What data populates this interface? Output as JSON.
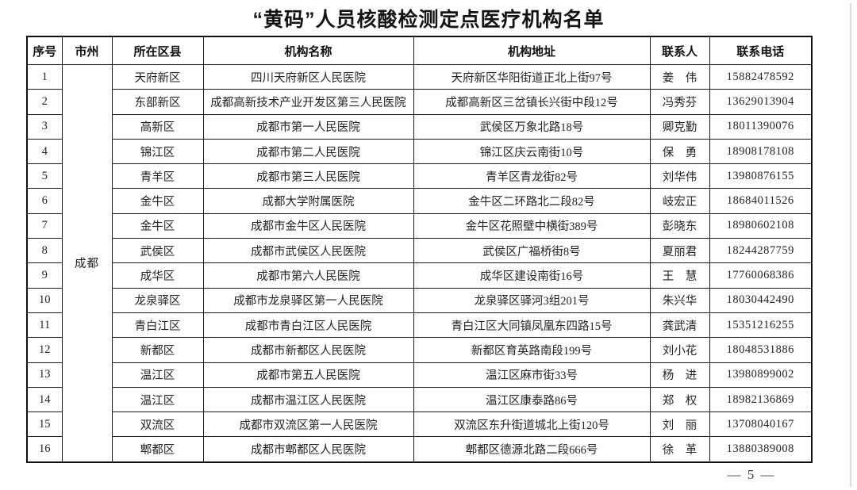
{
  "title": "“黄码”人员核酸检测定点医疗机构名单",
  "page_number": "— 5 —",
  "table": {
    "headers": [
      "序号",
      "市州",
      "所在区县",
      "机构名称",
      "机构地址",
      "联系人",
      "联系电话"
    ],
    "city": "成都",
    "rows": [
      {
        "no": "1",
        "district": "天府新区",
        "name": "四川天府新区人民医院",
        "address": "天府新区华阳街道正北上街97号",
        "contact": "姜　伟",
        "phone": "15882478592"
      },
      {
        "no": "2",
        "district": "东部新区",
        "name": "成都高新技术产业开发区第三人民医院",
        "address": "成都高新区三岔镇长兴街中段12号",
        "contact": "冯秀芬",
        "phone": "13629013904"
      },
      {
        "no": "3",
        "district": "高新区",
        "name": "成都市第一人民医院",
        "address": "武侯区万象北路18号",
        "contact": "卿克勤",
        "phone": "18011390076"
      },
      {
        "no": "4",
        "district": "锦江区",
        "name": "成都市第二人民医院",
        "address": "锦江区庆云南街10号",
        "contact": "保　勇",
        "phone": "18908178108"
      },
      {
        "no": "5",
        "district": "青羊区",
        "name": "成都市第三人民医院",
        "address": "青羊区青龙街82号",
        "contact": "刘华伟",
        "phone": "13980876155"
      },
      {
        "no": "6",
        "district": "金牛区",
        "name": "成都大学附属医院",
        "address": "金牛区二环路北二段82号",
        "contact": "岐宏正",
        "phone": "18684011526"
      },
      {
        "no": "7",
        "district": "金牛区",
        "name": "成都市金牛区人民医院",
        "address": "金牛区花照壁中横街389号",
        "contact": "彭晓东",
        "phone": "18980602108"
      },
      {
        "no": "8",
        "district": "武侯区",
        "name": "成都市武侯区人民医院",
        "address": "武侯区广福桥街8号",
        "contact": "夏丽君",
        "phone": "18244287759"
      },
      {
        "no": "9",
        "district": "成华区",
        "name": "成都市第六人民医院",
        "address": "成华区建设南街16号",
        "contact": "王　慧",
        "phone": "17760068386"
      },
      {
        "no": "10",
        "district": "龙泉驿区",
        "name": "成都市龙泉驿区第一人民医院",
        "address": "龙泉驿区驿河3组201号",
        "contact": "朱兴华",
        "phone": "18030442490"
      },
      {
        "no": "11",
        "district": "青白江区",
        "name": "成都市青白江区人民医院",
        "address": "青白江区大同镇凤凰东四路15号",
        "contact": "龚武清",
        "phone": "15351216255"
      },
      {
        "no": "12",
        "district": "新都区",
        "name": "成都市新都区人民医院",
        "address": "新都区育英路南段199号",
        "contact": "刘小花",
        "phone": "18048531886"
      },
      {
        "no": "13",
        "district": "温江区",
        "name": "成都市第五人民医院",
        "address": "温江区麻市街33号",
        "contact": "杨　进",
        "phone": "13980899002"
      },
      {
        "no": "14",
        "district": "温江区",
        "name": "成都市温江区人民医院",
        "address": "温江区康泰路86号",
        "contact": "郑　权",
        "phone": "18982136869"
      },
      {
        "no": "15",
        "district": "双流区",
        "name": "成都市双流区第一人民医院",
        "address": "双流区东升街道城北上街120号",
        "contact": "刘　丽",
        "phone": "13708040167"
      },
      {
        "no": "16",
        "district": "郫都区",
        "name": "成都市郫都区人民医院",
        "address": "郫都区德源北路二段666号",
        "contact": "徐　革",
        "phone": "13880389008"
      }
    ]
  }
}
